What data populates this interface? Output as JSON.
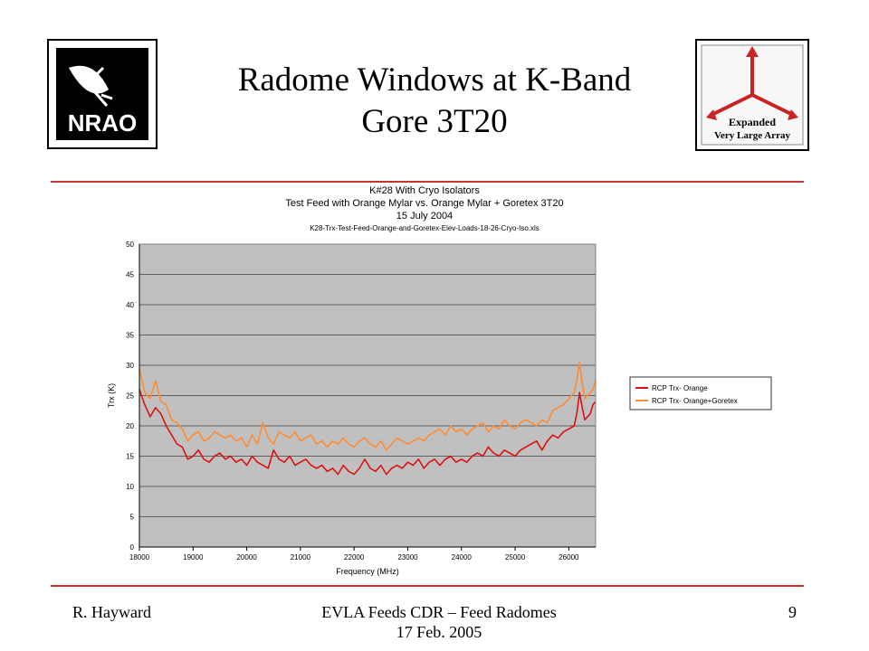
{
  "slide": {
    "title_line1": "Radome Windows at K-Band",
    "title_line2": "Gore 3T20",
    "footer_left": "R. Hayward",
    "footer_center_line1": "EVLA Feeds CDR – Feed Radomes",
    "footer_center_line2": "17 Feb. 2005",
    "page_number": "9",
    "accent_color": "#cc3333"
  },
  "logos": {
    "nrao": {
      "text": "NRAO",
      "icon": "nrao-dish-logo-icon"
    },
    "evla": {
      "line1": "Expanded",
      "line2": "Very Large Array",
      "icon": "evla-arrows-logo-icon"
    }
  },
  "chart_data": {
    "type": "line",
    "title_lines": [
      "K#28 With Cryo Isolators",
      "Test Feed with Orange Mylar vs. Orange Mylar + Goretex 3T20",
      "15 July 2004",
      "K28-Trx-Test-Feed-Orange-and-Goretex-Elev-Loads-18-26-Cryo-Iso.xls"
    ],
    "xlabel": "Frequency (MHz)",
    "ylabel": "Trx (K)",
    "xlim": [
      18000,
      26500
    ],
    "ylim": [
      0,
      50
    ],
    "xticks": [
      18000,
      19000,
      20000,
      21000,
      22000,
      23000,
      24000,
      25000,
      26000
    ],
    "yticks": [
      0,
      5,
      10,
      15,
      20,
      25,
      30,
      35,
      40,
      45,
      50
    ],
    "grid": "horizontal",
    "plot_background": "#c0c0c0",
    "legend_position": "right",
    "series": [
      {
        "name": "RCP Trx- Orange",
        "color": "#dd1111",
        "x": [
          18000,
          18100,
          18200,
          18300,
          18400,
          18500,
          18600,
          18700,
          18800,
          18900,
          19000,
          19100,
          19200,
          19300,
          19400,
          19500,
          19600,
          19700,
          19800,
          19900,
          20000,
          20100,
          20200,
          20300,
          20400,
          20500,
          20600,
          20700,
          20800,
          20900,
          21000,
          21100,
          21200,
          21300,
          21400,
          21500,
          21600,
          21700,
          21800,
          21900,
          22000,
          22100,
          22200,
          22300,
          22400,
          22500,
          22600,
          22700,
          22800,
          22900,
          23000,
          23100,
          23200,
          23300,
          23400,
          23500,
          23600,
          23700,
          23800,
          23900,
          24000,
          24100,
          24200,
          24300,
          24400,
          24500,
          24600,
          24700,
          24800,
          24900,
          25000,
          25100,
          25200,
          25300,
          25400,
          25500,
          25600,
          25700,
          25800,
          25900,
          26000,
          26100,
          26150,
          26200,
          26250,
          26300,
          26350,
          26400,
          26450,
          26500
        ],
        "values": [
          26.0,
          23.5,
          21.5,
          23.0,
          22.0,
          20.0,
          18.5,
          17.0,
          16.5,
          14.5,
          15.0,
          16.0,
          14.5,
          14.0,
          15.0,
          15.5,
          14.5,
          15.0,
          14.0,
          14.5,
          13.5,
          15.0,
          14.0,
          13.5,
          13.0,
          16.0,
          14.5,
          14.0,
          15.0,
          13.5,
          14.0,
          14.5,
          13.5,
          13.0,
          13.5,
          12.5,
          13.0,
          12.0,
          13.5,
          12.5,
          12.0,
          13.0,
          14.5,
          13.0,
          12.5,
          13.5,
          12.0,
          13.0,
          13.5,
          13.0,
          14.0,
          13.5,
          14.5,
          13.0,
          14.0,
          14.5,
          13.5,
          14.5,
          15.0,
          14.0,
          14.5,
          14.0,
          15.0,
          15.5,
          15.0,
          16.5,
          15.5,
          15.0,
          16.0,
          15.5,
          15.0,
          16.0,
          16.5,
          17.0,
          17.5,
          16.0,
          17.5,
          18.5,
          18.0,
          19.0,
          19.5,
          20.0,
          22.0,
          25.5,
          23.0,
          21.0,
          21.5,
          22.0,
          23.5,
          24.0
        ]
      },
      {
        "name": "RCP Trx- Orange+Goretex",
        "color": "#ff8c33",
        "x": [
          18000,
          18100,
          18200,
          18300,
          18400,
          18500,
          18600,
          18700,
          18800,
          18900,
          19000,
          19100,
          19200,
          19300,
          19400,
          19500,
          19600,
          19700,
          19800,
          19900,
          20000,
          20100,
          20200,
          20300,
          20400,
          20500,
          20600,
          20700,
          20800,
          20900,
          21000,
          21100,
          21200,
          21300,
          21400,
          21500,
          21600,
          21700,
          21800,
          21900,
          22000,
          22100,
          22200,
          22300,
          22400,
          22500,
          22600,
          22700,
          22800,
          22900,
          23000,
          23100,
          23200,
          23300,
          23400,
          23500,
          23600,
          23700,
          23800,
          23900,
          24000,
          24100,
          24200,
          24300,
          24400,
          24500,
          24600,
          24700,
          24800,
          24900,
          25000,
          25100,
          25200,
          25300,
          25400,
          25500,
          25600,
          25700,
          25800,
          25900,
          26000,
          26100,
          26150,
          26200,
          26250,
          26300,
          26350,
          26400,
          26450,
          26500
        ],
        "values": [
          29.5,
          25.5,
          24.5,
          27.5,
          24.0,
          23.5,
          21.0,
          20.5,
          19.5,
          17.5,
          18.5,
          19.0,
          17.5,
          18.0,
          19.0,
          18.5,
          18.0,
          18.5,
          17.5,
          18.0,
          16.5,
          18.5,
          17.0,
          20.5,
          18.0,
          17.0,
          19.0,
          18.5,
          18.0,
          19.0,
          17.5,
          18.0,
          18.5,
          17.0,
          17.5,
          16.5,
          17.5,
          17.0,
          18.0,
          17.0,
          16.5,
          17.5,
          18.0,
          17.0,
          16.5,
          17.5,
          16.0,
          17.0,
          18.0,
          17.5,
          17.0,
          17.5,
          18.0,
          17.5,
          18.5,
          19.0,
          19.5,
          18.5,
          20.0,
          19.0,
          19.5,
          18.5,
          19.5,
          20.0,
          20.5,
          19.0,
          20.0,
          19.5,
          21.0,
          20.0,
          19.5,
          20.5,
          21.0,
          20.5,
          20.0,
          21.0,
          20.5,
          22.5,
          23.0,
          23.5,
          24.5,
          25.5,
          27.5,
          30.5,
          27.0,
          24.5,
          25.0,
          25.5,
          26.0,
          27.5
        ]
      }
    ]
  }
}
